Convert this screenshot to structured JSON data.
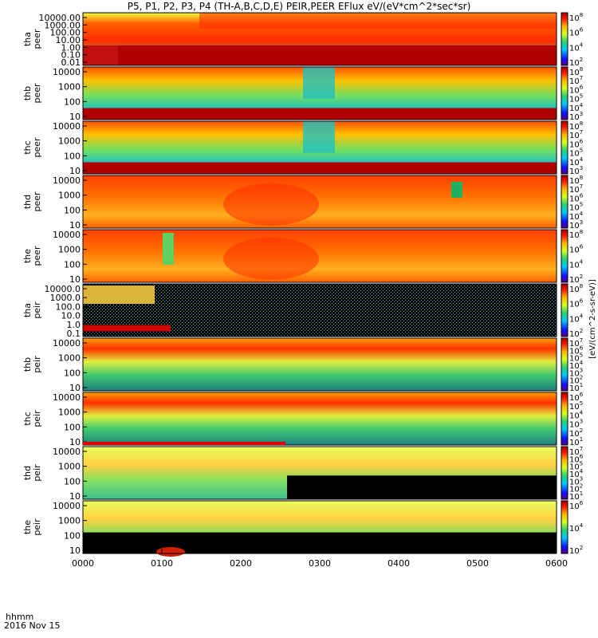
{
  "title": "P5, P1, P2, P3, P4 (TH-A,B,C,D,E) PEIR,PEER EFlux eV/(eV*cm^2*sec*sr)",
  "footer": {
    "time_label": "hhmm",
    "date_label": "2016 Nov 15"
  },
  "colorbar_label": "[eV/(cm^2-s-sr-eV)]",
  "chart_data": {
    "type": "heatmap",
    "x_axis": {
      "label": "hhmm",
      "ticks": [
        "0000",
        "0100",
        "0200",
        "0300",
        "0400",
        "0500",
        "0600"
      ],
      "range_minutes": [
        0,
        360
      ]
    },
    "panels": [
      {
        "name_line1": "tha",
        "name_line2": "peer",
        "ylabels": [
          "10000.00",
          "1000.00",
          "100.00",
          "10.00",
          "1.00",
          "0.10",
          "0.01"
        ],
        "ylog": true,
        "cb_labels": [
          "10^8",
          "10^6",
          "10^4",
          "10^2"
        ]
      },
      {
        "name_line1": "thb",
        "name_line2": "peer",
        "ylabels": [
          "10000",
          "1000",
          "100",
          "10"
        ],
        "ylog": true,
        "cb_labels": [
          "10^8",
          "10^7",
          "10^6",
          "10^5",
          "10^4",
          "10^3"
        ]
      },
      {
        "name_line1": "thc",
        "name_line2": "peer",
        "ylabels": [
          "10000",
          "1000",
          "100",
          "10"
        ],
        "ylog": true,
        "cb_labels": [
          "10^8",
          "10^7",
          "10^6",
          "10^5",
          "10^4",
          "10^3"
        ]
      },
      {
        "name_line1": "thd",
        "name_line2": "peer",
        "ylabels": [
          "10000",
          "1000",
          "100",
          "10"
        ],
        "ylog": true,
        "cb_labels": [
          "10^8",
          "10^7",
          "10^6",
          "10^5",
          "10^4",
          "10^3"
        ]
      },
      {
        "name_line1": "the",
        "name_line2": "peer",
        "ylabels": [
          "10000",
          "1000",
          "100",
          "10"
        ],
        "ylog": true,
        "cb_labels": [
          "10^8",
          "10^6",
          "10^4",
          "10^2"
        ]
      },
      {
        "name_line1": "tha",
        "name_line2": "peir",
        "ylabels": [
          "10000.0",
          "1000.0",
          "100.0",
          "10.0",
          "1.0",
          "0.1"
        ],
        "ylog": true,
        "cb_labels": [
          "10^8",
          "10^6",
          "10^4",
          "10^2"
        ]
      },
      {
        "name_line1": "thb",
        "name_line2": "peir",
        "ylabels": [
          "10000",
          "1000",
          "100",
          "10"
        ],
        "ylog": true,
        "cb_labels": [
          "10^7",
          "10^6",
          "10^5",
          "10^4",
          "10^3",
          "10^2",
          "10^1"
        ]
      },
      {
        "name_line1": "thc",
        "name_line2": "peir",
        "ylabels": [
          "10000",
          "1000",
          "100",
          "10"
        ],
        "ylog": true,
        "cb_labels": [
          "10^6",
          "10^5",
          "10^4",
          "10^3",
          "10^2",
          "10^1"
        ]
      },
      {
        "name_line1": "thd",
        "name_line2": "peir",
        "ylabels": [
          "10000",
          "1000",
          "100",
          "10"
        ],
        "ylog": true,
        "cb_labels": [
          "10^7",
          "10^6",
          "10^5",
          "10^4",
          "10^3",
          "10^2",
          "10^1"
        ]
      },
      {
        "name_line1": "the",
        "name_line2": "peir",
        "ylabels": [
          "10000",
          "1000",
          "100",
          "10"
        ],
        "ylog": true,
        "cb_labels": [
          "10^6",
          "10^4",
          "10^2"
        ]
      }
    ]
  }
}
